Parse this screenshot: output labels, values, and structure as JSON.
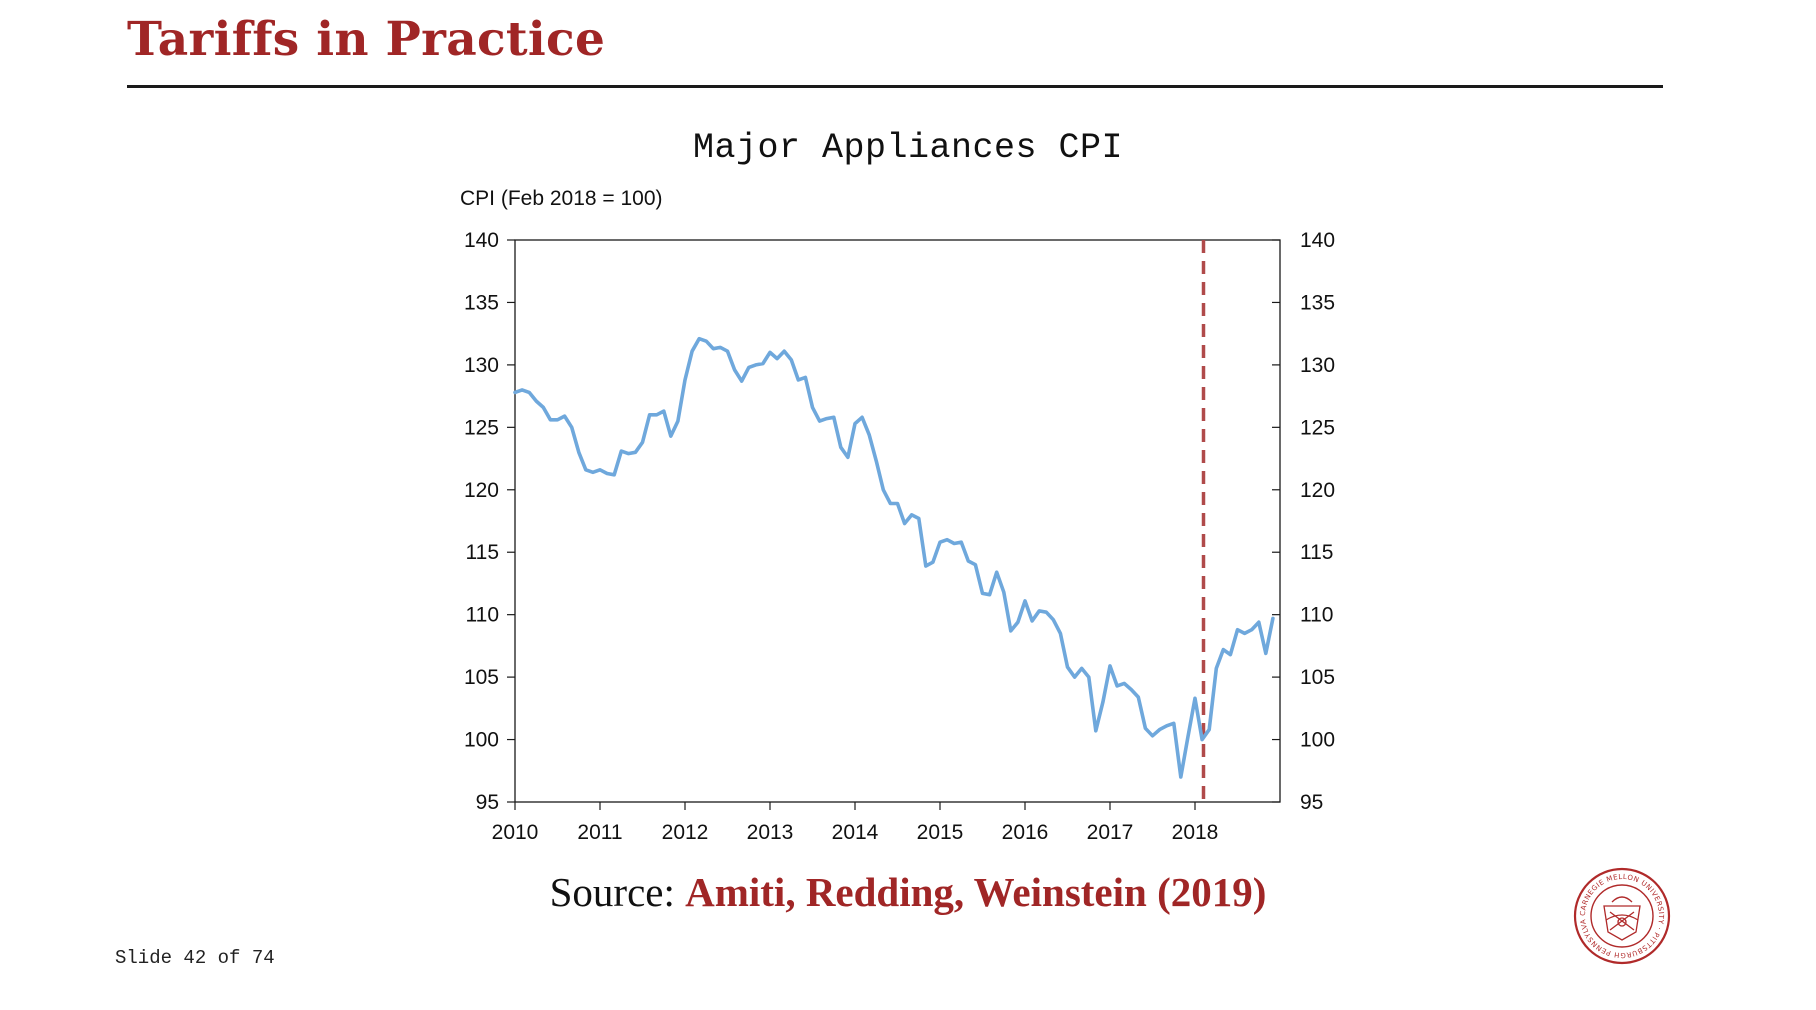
{
  "slide": {
    "title": "Tariffs in Practice",
    "source_prefix": "Source:",
    "source_citation": "Amiti, Redding, Weinstein (2019)",
    "slide_number": "Slide 42 of 74",
    "seal_text": "CARNEGIE MELLON UNIVERSITY · PITTSBURGH PENNSYLVANIA ·"
  },
  "colors": {
    "title": "#a02626",
    "line": "#6fa8dc",
    "marker": "#b04a4a"
  },
  "chart_data": {
    "type": "line",
    "title": "Major Appliances CPI",
    "ylabel": "CPI (Feb 2018 = 100)",
    "xlabel": "",
    "ylim": [
      95,
      140
    ],
    "yticks": [
      95,
      100,
      105,
      110,
      115,
      120,
      125,
      130,
      135,
      140
    ],
    "y_axis_right": true,
    "xlim": [
      2010,
      2019
    ],
    "xticks": [
      2010,
      2011,
      2012,
      2013,
      2014,
      2015,
      2016,
      2017,
      2018
    ],
    "xtick_labels": [
      "2010",
      "2011",
      "2012",
      "2013",
      "2014",
      "2015",
      "2016",
      "2017",
      "2018"
    ],
    "grid": false,
    "vline": {
      "x": 2018.1,
      "style": "dashed"
    },
    "series": [
      {
        "x": [
          2010.0,
          2010.083,
          2010.167,
          2010.25,
          2010.333,
          2010.417,
          2010.5,
          2010.583,
          2010.667,
          2010.75,
          2010.833,
          2010.917,
          2011.0,
          2011.083,
          2011.167,
          2011.25,
          2011.333,
          2011.417,
          2011.5,
          2011.583,
          2011.667,
          2011.75,
          2011.833,
          2011.917,
          2012.0,
          2012.083,
          2012.167,
          2012.25,
          2012.333,
          2012.417,
          2012.5,
          2012.583,
          2012.667,
          2012.75,
          2012.833,
          2012.917,
          2013.0,
          2013.083,
          2013.167,
          2013.25,
          2013.333,
          2013.417,
          2013.5,
          2013.583,
          2013.667,
          2013.75,
          2013.833,
          2013.917,
          2014.0,
          2014.083,
          2014.167,
          2014.25,
          2014.333,
          2014.417,
          2014.5,
          2014.583,
          2014.667,
          2014.75,
          2014.833,
          2014.917,
          2015.0,
          2015.083,
          2015.167,
          2015.25,
          2015.333,
          2015.417,
          2015.5,
          2015.583,
          2015.667,
          2015.75,
          2015.833,
          2015.917,
          2016.0,
          2016.083,
          2016.167,
          2016.25,
          2016.333,
          2016.417,
          2016.5,
          2016.583,
          2016.667,
          2016.75,
          2016.833,
          2016.917,
          2017.0,
          2017.083,
          2017.167,
          2017.25,
          2017.333,
          2017.417,
          2017.5,
          2017.583,
          2017.667,
          2017.75,
          2017.833,
          2017.917,
          2018.0,
          2018.083,
          2018.167,
          2018.25,
          2018.333,
          2018.417,
          2018.5,
          2018.583,
          2018.667,
          2018.75,
          2018.833,
          2018.917
        ],
        "values": [
          127.8,
          128.0,
          127.8,
          127.1,
          126.6,
          125.6,
          125.6,
          125.9,
          125.0,
          123.0,
          121.6,
          121.4,
          121.6,
          121.3,
          121.2,
          123.1,
          122.9,
          123.0,
          123.8,
          126.0,
          126.0,
          126.3,
          124.3,
          125.5,
          128.8,
          131.1,
          132.1,
          131.9,
          131.3,
          131.4,
          131.1,
          129.6,
          128.7,
          129.8,
          130.0,
          130.1,
          131.0,
          130.5,
          131.1,
          130.4,
          128.8,
          129.0,
          126.6,
          125.5,
          125.7,
          125.8,
          123.4,
          122.6,
          125.3,
          125.8,
          124.4,
          122.3,
          120.0,
          118.9,
          118.9,
          117.3,
          118.0,
          117.7,
          113.9,
          114.2,
          115.8,
          116.0,
          115.7,
          115.8,
          114.3,
          114.0,
          111.7,
          111.6,
          113.4,
          111.8,
          108.7,
          109.4,
          111.1,
          109.5,
          110.3,
          110.2,
          109.6,
          108.5,
          105.8,
          105.0,
          105.7,
          105.0,
          100.7,
          103.0,
          105.9,
          104.3,
          104.5,
          104.0,
          103.4,
          100.9,
          100.3,
          100.8,
          101.1,
          101.3,
          97.0,
          100.2,
          103.3,
          100.0,
          100.8,
          105.7,
          107.2,
          106.8,
          108.8,
          108.5,
          108.8,
          109.4,
          106.9,
          109.7
        ]
      }
    ]
  }
}
